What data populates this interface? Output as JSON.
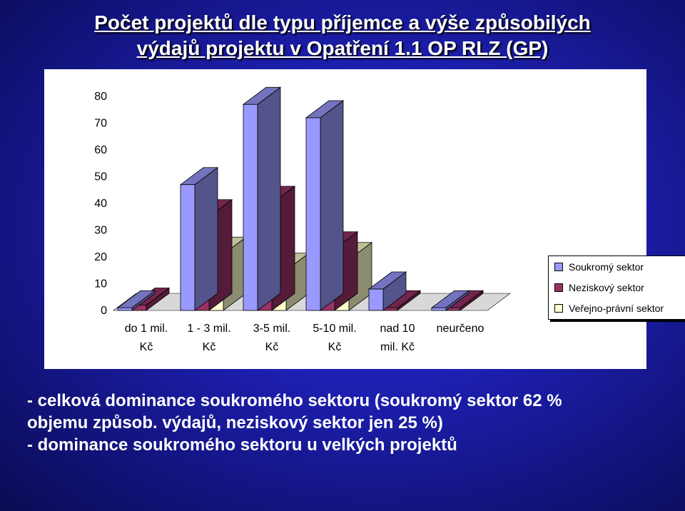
{
  "title": {
    "line1": "Počet projektů dle typu příjemce a výše způsobilých",
    "line2": "výdajů projektu v Opatření 1.1 OP RLZ (GP)"
  },
  "chart_data": {
    "type": "bar",
    "categories": [
      [
        "do 1 mil.",
        "Kč"
      ],
      [
        "1 - 3 mil.",
        "Kč"
      ],
      [
        "3-5 mil.",
        "Kč"
      ],
      [
        "5-10 mil.",
        "Kč"
      ],
      [
        "nad 10",
        "mil. Kč"
      ],
      [
        "neurčeno",
        ""
      ]
    ],
    "series": [
      {
        "name": "Soukromý sektor",
        "values": [
          1,
          47,
          77,
          72,
          8,
          1
        ],
        "color": "#9999ff"
      },
      {
        "name": "Neziskový sektor",
        "values": [
          2,
          35,
          40,
          23,
          1,
          1
        ],
        "color": "#993366"
      },
      {
        "name": "Veřejno-právní sektor",
        "values": [
          0,
          21,
          15,
          19,
          0,
          0
        ],
        "color": "#ffffcc"
      }
    ],
    "ylim": [
      0,
      80
    ],
    "yticks": [
      0,
      10,
      20,
      30,
      40,
      50,
      60,
      70,
      80
    ],
    "legend_position": "right"
  },
  "notes": [
    "- celková dominance soukromého sektoru (soukromý sektor 62 %",
    "objemu způsob. výdajů, neziskový sektor jen 25 %)",
    "- dominance soukromého sektoru u velkých projektů"
  ]
}
